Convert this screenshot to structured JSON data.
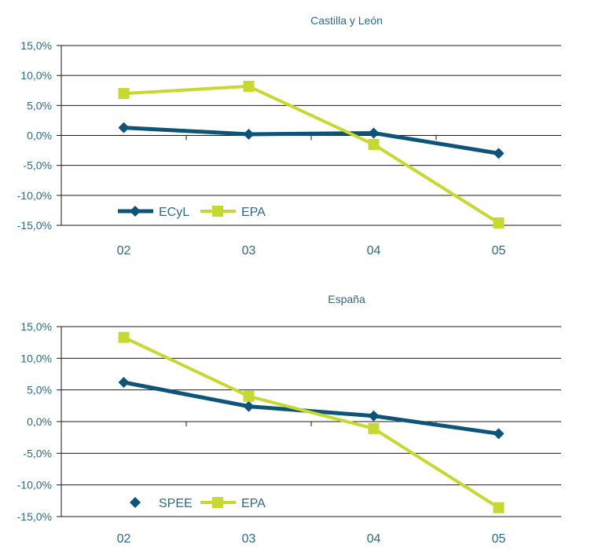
{
  "chart_data": [
    {
      "type": "line",
      "title": "Castilla y León",
      "categories": [
        "02",
        "03",
        "04",
        "05"
      ],
      "yticks": [
        "15,0%",
        "10,0%",
        "5,0%",
        "0,0%",
        "-5,0%",
        "-10,0%",
        "-15,0%"
      ],
      "ylim": [
        -15,
        15
      ],
      "grid": true,
      "legend": "bottom-left, inside plot",
      "series": [
        {
          "name": "ECyL",
          "values": [
            1.3,
            0.2,
            0.4,
            -3.0
          ],
          "color": "#0d5478",
          "marker": "diamond"
        },
        {
          "name": "EPA",
          "values": [
            7.0,
            8.2,
            -1.5,
            -14.6
          ],
          "color": "#c6d92e",
          "marker": "square"
        }
      ]
    },
    {
      "type": "line",
      "title": "España",
      "categories": [
        "02",
        "03",
        "04",
        "05"
      ],
      "yticks": [
        "15,0%",
        "10,0%",
        "5,0%",
        "0,0%",
        "-5,0%",
        "-10,0%",
        "-15,0%"
      ],
      "ylim": [
        -15,
        15
      ],
      "grid": true,
      "legend": "bottom-left, inside plot",
      "series": [
        {
          "name": "SPEE",
          "values": [
            6.2,
            2.4,
            0.9,
            -1.9
          ],
          "color": "#0d5478",
          "marker": "diamond"
        },
        {
          "name": "EPA",
          "values": [
            13.3,
            4.0,
            -1.1,
            -13.6
          ],
          "color": "#c6d92e",
          "marker": "square"
        }
      ]
    }
  ]
}
